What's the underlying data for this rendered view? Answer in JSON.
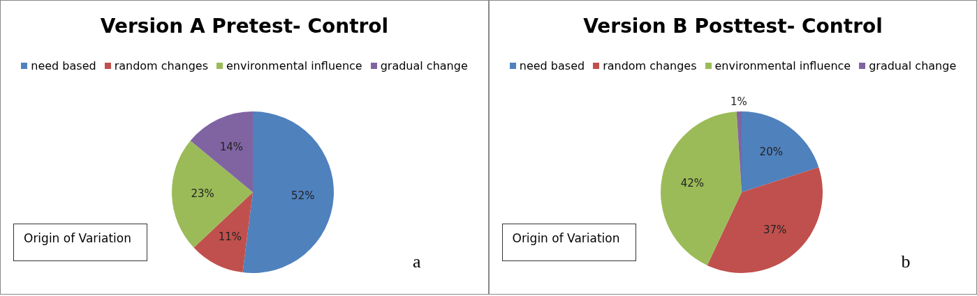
{
  "chart_data": [
    {
      "type": "pie",
      "title": "Version A Pretest- Control",
      "categories": [
        "need based",
        "random changes",
        "environmental influence",
        "gradual change"
      ],
      "values": [
        52,
        11,
        23,
        14
      ],
      "colors": [
        "#4f81bd",
        "#c0504d",
        "#9bbb59",
        "#8064a2"
      ],
      "value_labels": [
        "52%",
        "11%",
        "23%",
        "14%"
      ],
      "legend": "top",
      "annotations": [
        "Origin of Variation",
        "a"
      ]
    },
    {
      "type": "pie",
      "title": "Version B Posttest- Control",
      "categories": [
        "need based",
        "random changes",
        "environmental influence",
        "gradual change"
      ],
      "values": [
        20,
        37,
        42,
        1
      ],
      "colors": [
        "#4f81bd",
        "#c0504d",
        "#9bbb59",
        "#8064a2"
      ],
      "value_labels": [
        "20%",
        "37%",
        "42%",
        "1%"
      ],
      "legend": "top",
      "annotations": [
        "Origin of Variation",
        "b"
      ]
    }
  ]
}
